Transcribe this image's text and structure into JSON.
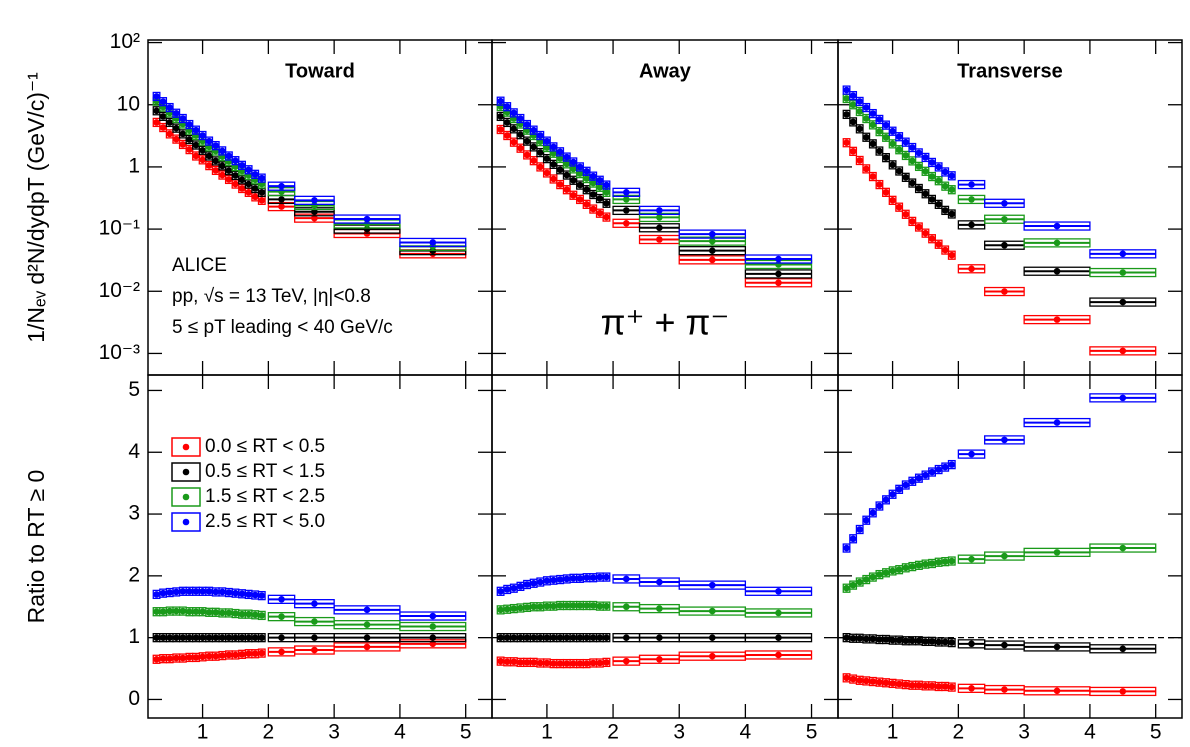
{
  "chart_data": [
    {
      "type": "scatter",
      "title": "Toward",
      "log": true,
      "show_xtick_labels": false,
      "show_ytick_labels": true,
      "ylabel": "1/Nₑᵥ d²N/dydpT (GeV/c)⁻¹",
      "annotations": [
        "ALICE",
        "pp, √s = 13 TeV, |η|<0.8",
        "5 ≤ pT leading < 40 GeV/c"
      ],
      "x": [
        0.3,
        0.4,
        0.5,
        0.6,
        0.7,
        0.8,
        0.9,
        1.0,
        1.1,
        1.2,
        1.3,
        1.4,
        1.5,
        1.6,
        1.7,
        1.8,
        1.9,
        2.2,
        2.7,
        3.5,
        4.5
      ],
      "xerr": [
        0.05,
        0.05,
        0.05,
        0.05,
        0.05,
        0.05,
        0.05,
        0.05,
        0.05,
        0.05,
        0.05,
        0.05,
        0.05,
        0.05,
        0.05,
        0.05,
        0.05,
        0.2,
        0.3,
        0.5,
        0.5
      ],
      "xlim": [
        0.17,
        5.4
      ],
      "xticks": [
        1,
        2,
        3,
        4,
        5
      ],
      "ylim": [
        0.00045,
        110
      ],
      "yticks": [
        {
          "value": 0.001,
          "label": "10⁻³"
        },
        {
          "value": 0.01,
          "label": "10⁻²"
        },
        {
          "value": 0.1,
          "label": "10⁻¹"
        },
        1,
        10,
        {
          "value": 100,
          "label": "10²"
        }
      ],
      "series": [
        {
          "color": "#ff0000",
          "values": [
            5.2,
            4.3,
            3.4,
            2.8,
            2.3,
            1.9,
            1.5,
            1.3,
            1.05,
            0.88,
            0.74,
            0.63,
            0.53,
            0.45,
            0.39,
            0.33,
            0.29,
            0.23,
            0.15,
            0.085,
            0.04
          ]
        },
        {
          "color": "#000000",
          "values": [
            8,
            6.5,
            5.2,
            4.2,
            3.4,
            2.75,
            2.25,
            1.85,
            1.5,
            1.25,
            1.04,
            0.87,
            0.73,
            0.62,
            0.53,
            0.45,
            0.39,
            0.3,
            0.19,
            0.1,
            0.045
          ]
        },
        {
          "color": "#1a9a1a",
          "values": [
            11.4,
            9.2,
            7.4,
            6.0,
            4.9,
            3.9,
            3.2,
            2.6,
            2.1,
            1.8,
            1.46,
            1.22,
            1.01,
            0.86,
            0.73,
            0.62,
            0.53,
            0.4,
            0.24,
            0.121,
            0.053
          ]
        },
        {
          "color": "#0000ff",
          "values": [
            13.6,
            11.2,
            9.0,
            7.3,
            6.0,
            4.8,
            3.9,
            3.2,
            2.6,
            2.2,
            1.81,
            1.5,
            1.26,
            1.06,
            0.9,
            0.76,
            0.66,
            0.49,
            0.29,
            0.145,
            0.061
          ]
        }
      ]
    },
    {
      "type": "scatter",
      "title": "Away",
      "log": true,
      "show_xtick_labels": false,
      "show_ytick_labels": false,
      "annotations": [
        "π⁺ + π⁻"
      ],
      "x": [
        0.3,
        0.4,
        0.5,
        0.6,
        0.7,
        0.8,
        0.9,
        1.0,
        1.1,
        1.2,
        1.3,
        1.4,
        1.5,
        1.6,
        1.7,
        1.8,
        1.9,
        2.2,
        2.7,
        3.5,
        4.5
      ],
      "xerr": [
        0.05,
        0.05,
        0.05,
        0.05,
        0.05,
        0.05,
        0.05,
        0.05,
        0.05,
        0.05,
        0.05,
        0.05,
        0.05,
        0.05,
        0.05,
        0.05,
        0.05,
        0.2,
        0.3,
        0.5,
        0.5
      ],
      "xlim": [
        0.17,
        5.4
      ],
      "xticks": [
        1,
        2,
        3,
        4,
        5
      ],
      "ylim": [
        0.00045,
        110
      ],
      "yticks": [
        0.001,
        0.01,
        0.1,
        1,
        10,
        100
      ],
      "series": [
        {
          "color": "#ff0000",
          "values": [
            4.0,
            3.2,
            2.5,
            2.0,
            1.56,
            1.26,
            1.0,
            0.8,
            0.64,
            0.52,
            0.43,
            0.35,
            0.3,
            0.25,
            0.21,
            0.18,
            0.156,
            0.124,
            0.068,
            0.032,
            0.0137
          ]
        },
        {
          "color": "#000000",
          "values": [
            6.5,
            5.2,
            4.1,
            3.3,
            2.6,
            2.1,
            1.7,
            1.36,
            1.1,
            0.9,
            0.74,
            0.61,
            0.51,
            0.43,
            0.36,
            0.31,
            0.26,
            0.2,
            0.105,
            0.045,
            0.019
          ]
        },
        {
          "color": "#1a9a1a",
          "values": [
            9.4,
            7.6,
            6.0,
            4.9,
            3.9,
            3.2,
            2.55,
            2.05,
            1.66,
            1.37,
            1.12,
            0.93,
            0.78,
            0.65,
            0.55,
            0.47,
            0.39,
            0.3,
            0.154,
            0.064,
            0.027
          ]
        },
        {
          "color": "#0000ff",
          "values": [
            11.4,
            9.3,
            7.4,
            6.0,
            4.8,
            3.9,
            3.2,
            2.6,
            2.1,
            1.75,
            1.44,
            1.2,
            1.0,
            0.85,
            0.71,
            0.61,
            0.51,
            0.39,
            0.2,
            0.083,
            0.033
          ]
        }
      ]
    },
    {
      "type": "scatter",
      "title": "Transverse",
      "log": true,
      "show_xtick_labels": false,
      "show_ytick_labels": false,
      "x": [
        0.3,
        0.4,
        0.5,
        0.6,
        0.7,
        0.8,
        0.9,
        1.0,
        1.1,
        1.2,
        1.3,
        1.4,
        1.5,
        1.6,
        1.7,
        1.8,
        1.9,
        2.2,
        2.7,
        3.5,
        4.5
      ],
      "xerr": [
        0.05,
        0.05,
        0.05,
        0.05,
        0.05,
        0.05,
        0.05,
        0.05,
        0.05,
        0.05,
        0.05,
        0.05,
        0.05,
        0.05,
        0.05,
        0.05,
        0.05,
        0.2,
        0.3,
        0.5,
        0.5
      ],
      "xlim": [
        0.17,
        5.4
      ],
      "xticks": [
        1,
        2,
        3,
        4,
        5
      ],
      "ylim": [
        0.00045,
        110
      ],
      "yticks": [
        0.001,
        0.01,
        0.1,
        1,
        10,
        100
      ],
      "series": [
        {
          "color": "#ff0000",
          "values": [
            2.45,
            1.78,
            1.27,
            0.93,
            0.7,
            0.52,
            0.39,
            0.29,
            0.225,
            0.173,
            0.133,
            0.108,
            0.086,
            0.07,
            0.057,
            0.046,
            0.038,
            0.023,
            0.0099,
            0.0035,
            0.0011
          ]
        },
        {
          "color": "#000000",
          "values": [
            7.0,
            5.3,
            4.1,
            3.0,
            2.35,
            1.8,
            1.41,
            1.08,
            0.86,
            0.68,
            0.55,
            0.45,
            0.37,
            0.3,
            0.25,
            0.2,
            0.175,
            0.117,
            0.055,
            0.021,
            0.0067
          ]
        },
        {
          "color": "#1a9a1a",
          "values": [
            12.6,
            10.0,
            7.8,
            6.0,
            4.75,
            3.7,
            3.0,
            2.35,
            1.89,
            1.53,
            1.25,
            1.02,
            0.85,
            0.7,
            0.6,
            0.49,
            0.43,
            0.3,
            0.144,
            0.06,
            0.02
          ]
        },
        {
          "color": "#0000ff",
          "values": [
            17.2,
            14.0,
            11.3,
            9.0,
            7.2,
            5.8,
            4.7,
            3.75,
            3.06,
            2.5,
            2.05,
            1.68,
            1.42,
            1.18,
            1.0,
            0.83,
            0.72,
            0.52,
            0.26,
            0.112,
            0.04
          ]
        }
      ]
    },
    {
      "type": "scatter",
      "log": false,
      "show_xtick_labels": true,
      "show_ytick_labels": true,
      "ylabel": "Ratio to RT ≥ 0",
      "legend": "upper left",
      "x": [
        0.3,
        0.4,
        0.5,
        0.6,
        0.7,
        0.8,
        0.9,
        1.0,
        1.1,
        1.2,
        1.3,
        1.4,
        1.5,
        1.6,
        1.7,
        1.8,
        1.9,
        2.2,
        2.7,
        3.5,
        4.5
      ],
      "xerr": [
        0.05,
        0.05,
        0.05,
        0.05,
        0.05,
        0.05,
        0.05,
        0.05,
        0.05,
        0.05,
        0.05,
        0.05,
        0.05,
        0.05,
        0.05,
        0.05,
        0.05,
        0.2,
        0.3,
        0.5,
        0.5
      ],
      "xlim": [
        0.17,
        5.4
      ],
      "xticks": [
        1,
        2,
        3,
        4,
        5
      ],
      "ylim": [
        -0.3,
        5.25
      ],
      "yticks": [
        0,
        1,
        2,
        3,
        4,
        5
      ],
      "series": [
        {
          "name": "0.0 ≤ RT < 0.5",
          "color": "#ff0000",
          "values": [
            0.65,
            0.66,
            0.66,
            0.67,
            0.67,
            0.68,
            0.68,
            0.69,
            0.7,
            0.7,
            0.71,
            0.72,
            0.72,
            0.73,
            0.74,
            0.74,
            0.75,
            0.77,
            0.8,
            0.85,
            0.9
          ]
        },
        {
          "name": "0.5 ≤ RT < 1.5",
          "color": "#000000",
          "values": [
            1,
            1,
            1,
            1,
            1,
            1,
            1,
            1,
            1,
            1,
            1,
            1,
            1,
            1,
            1,
            1,
            1,
            1,
            1,
            1,
            1
          ]
        },
        {
          "name": "1.5 ≤ RT < 2.5",
          "color": "#1a9a1a",
          "values": [
            1.42,
            1.42,
            1.43,
            1.43,
            1.43,
            1.42,
            1.42,
            1.42,
            1.41,
            1.41,
            1.4,
            1.4,
            1.39,
            1.38,
            1.38,
            1.37,
            1.36,
            1.34,
            1.26,
            1.21,
            1.18
          ]
        },
        {
          "name": "2.5 ≤ RT < 5.0",
          "color": "#0000ff",
          "values": [
            1.7,
            1.72,
            1.73,
            1.74,
            1.75,
            1.75,
            1.75,
            1.75,
            1.75,
            1.74,
            1.74,
            1.73,
            1.72,
            1.71,
            1.7,
            1.69,
            1.68,
            1.62,
            1.55,
            1.45,
            1.35
          ]
        }
      ]
    },
    {
      "type": "scatter",
      "log": false,
      "show_xtick_labels": true,
      "show_ytick_labels": false,
      "x": [
        0.3,
        0.4,
        0.5,
        0.6,
        0.7,
        0.8,
        0.9,
        1.0,
        1.1,
        1.2,
        1.3,
        1.4,
        1.5,
        1.6,
        1.7,
        1.8,
        1.9,
        2.2,
        2.7,
        3.5,
        4.5
      ],
      "xerr": [
        0.05,
        0.05,
        0.05,
        0.05,
        0.05,
        0.05,
        0.05,
        0.05,
        0.05,
        0.05,
        0.05,
        0.05,
        0.05,
        0.05,
        0.05,
        0.05,
        0.05,
        0.2,
        0.3,
        0.5,
        0.5
      ],
      "xlim": [
        0.17,
        5.4
      ],
      "xticks": [
        1,
        2,
        3,
        4,
        5
      ],
      "ylim": [
        -0.3,
        5.25
      ],
      "yticks": [
        0,
        1,
        2,
        3,
        4,
        5
      ],
      "series": [
        {
          "color": "#ff0000",
          "values": [
            0.62,
            0.61,
            0.61,
            0.6,
            0.6,
            0.6,
            0.59,
            0.59,
            0.58,
            0.58,
            0.58,
            0.58,
            0.58,
            0.58,
            0.59,
            0.59,
            0.6,
            0.62,
            0.65,
            0.7,
            0.72
          ]
        },
        {
          "color": "#000000",
          "values": [
            1,
            1,
            1,
            1,
            1,
            1,
            1,
            1,
            1,
            1,
            1,
            1,
            1,
            1,
            1,
            1,
            1,
            1,
            1,
            1,
            1
          ]
        },
        {
          "color": "#1a9a1a",
          "values": [
            1.45,
            1.46,
            1.47,
            1.48,
            1.49,
            1.5,
            1.5,
            1.51,
            1.51,
            1.52,
            1.52,
            1.52,
            1.52,
            1.52,
            1.52,
            1.51,
            1.51,
            1.5,
            1.47,
            1.43,
            1.4
          ]
        },
        {
          "color": "#0000ff",
          "values": [
            1.75,
            1.78,
            1.8,
            1.83,
            1.86,
            1.88,
            1.9,
            1.92,
            1.93,
            1.94,
            1.95,
            1.96,
            1.96,
            1.97,
            1.97,
            1.98,
            1.98,
            1.95,
            1.9,
            1.85,
            1.75
          ]
        }
      ]
    },
    {
      "type": "scatter",
      "log": false,
      "show_xtick_labels": true,
      "show_ytick_labels": false,
      "hline": 1,
      "x": [
        0.3,
        0.4,
        0.5,
        0.6,
        0.7,
        0.8,
        0.9,
        1.0,
        1.1,
        1.2,
        1.3,
        1.4,
        1.5,
        1.6,
        1.7,
        1.8,
        1.9,
        2.2,
        2.7,
        3.5,
        4.5
      ],
      "xerr": [
        0.05,
        0.05,
        0.05,
        0.05,
        0.05,
        0.05,
        0.05,
        0.05,
        0.05,
        0.05,
        0.05,
        0.05,
        0.05,
        0.05,
        0.05,
        0.05,
        0.05,
        0.2,
        0.3,
        0.5,
        0.5
      ],
      "xlim": [
        0.17,
        5.4
      ],
      "xticks": [
        1,
        2,
        3,
        4,
        5
      ],
      "ylim": [
        -0.3,
        5.25
      ],
      "yticks": [
        0,
        1,
        2,
        3,
        4,
        5
      ],
      "series": [
        {
          "color": "#ff0000",
          "values": [
            0.35,
            0.33,
            0.31,
            0.3,
            0.29,
            0.28,
            0.27,
            0.26,
            0.25,
            0.24,
            0.23,
            0.23,
            0.22,
            0.22,
            0.21,
            0.21,
            0.2,
            0.18,
            0.16,
            0.14,
            0.13
          ]
        },
        {
          "color": "#000000",
          "values": [
            1.0,
            0.99,
            0.99,
            0.98,
            0.98,
            0.97,
            0.97,
            0.96,
            0.96,
            0.95,
            0.95,
            0.95,
            0.94,
            0.94,
            0.93,
            0.93,
            0.92,
            0.9,
            0.88,
            0.85,
            0.82
          ]
        },
        {
          "color": "#1a9a1a",
          "values": [
            1.8,
            1.85,
            1.9,
            1.94,
            1.98,
            2.02,
            2.05,
            2.08,
            2.1,
            2.13,
            2.15,
            2.17,
            2.19,
            2.2,
            2.22,
            2.23,
            2.24,
            2.27,
            2.32,
            2.38,
            2.45
          ]
        },
        {
          "color": "#0000ff",
          "values": [
            2.45,
            2.6,
            2.75,
            2.9,
            3.02,
            3.13,
            3.23,
            3.32,
            3.4,
            3.47,
            3.53,
            3.58,
            3.63,
            3.68,
            3.72,
            3.76,
            3.8,
            3.97,
            4.2,
            4.48,
            4.88
          ]
        }
      ]
    }
  ]
}
